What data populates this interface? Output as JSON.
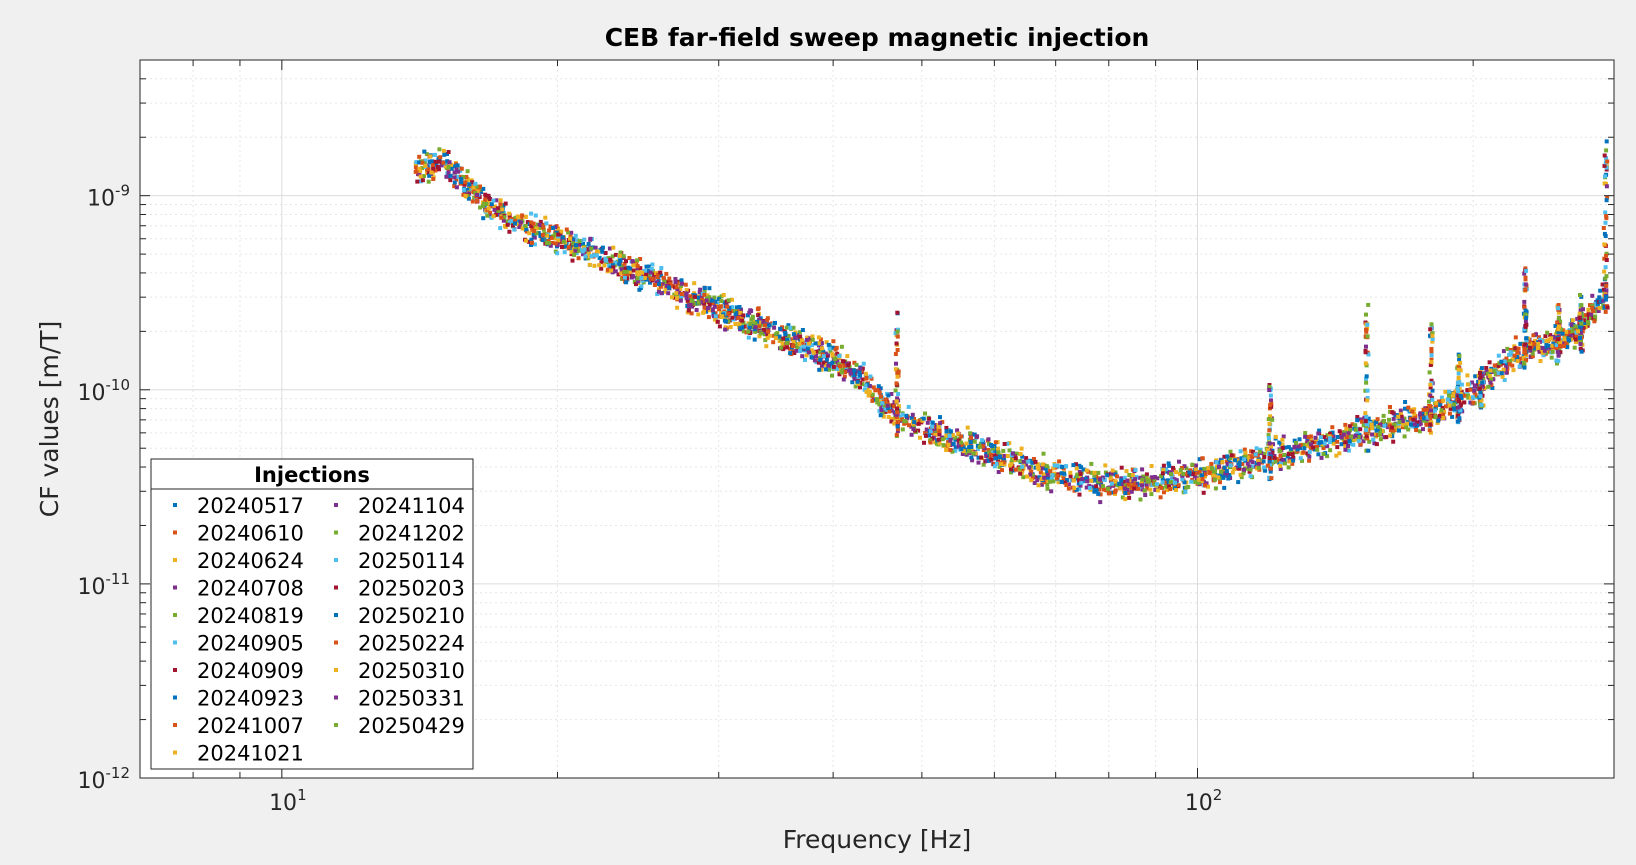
{
  "chart_data": {
    "type": "scatter",
    "title": "CEB far-field sweep magnetic injection",
    "xlabel": "Frequency [Hz]",
    "ylabel": "CF values [m/T]",
    "xscale": "log",
    "yscale": "log",
    "xlim": [
      7,
      285
    ],
    "ylim": [
      1e-12,
      5e-09
    ],
    "grid": true,
    "minor_grid": true,
    "x_ticks": [
      {
        "value": 10,
        "base": "10",
        "exp": "1"
      },
      {
        "value": 100,
        "base": "10",
        "exp": "2"
      }
    ],
    "y_ticks": [
      {
        "value": 1e-09,
        "base": "10",
        "exp": "-9"
      },
      {
        "value": 1e-10,
        "base": "10",
        "exp": "-10"
      },
      {
        "value": 1e-11,
        "base": "10",
        "exp": "-11"
      },
      {
        "value": 1e-12,
        "base": "10",
        "exp": "-12"
      }
    ],
    "legend": {
      "title": "Injections",
      "placement": "bottom-left",
      "columns": 2
    },
    "series": [
      {
        "name": "20240517",
        "color": "#0072BD"
      },
      {
        "name": "20240610",
        "color": "#D95319"
      },
      {
        "name": "20240624",
        "color": "#EDB120"
      },
      {
        "name": "20240708",
        "color": "#7E2F8E"
      },
      {
        "name": "20240819",
        "color": "#77AC30"
      },
      {
        "name": "20240905",
        "color": "#4DBEEE"
      },
      {
        "name": "20240909",
        "color": "#A2142F"
      },
      {
        "name": "20240923",
        "color": "#0072BD"
      },
      {
        "name": "20241007",
        "color": "#D95319"
      },
      {
        "name": "20241021",
        "color": "#EDB120"
      },
      {
        "name": "20241104",
        "color": "#7E2F8E"
      },
      {
        "name": "20241202",
        "color": "#77AC30"
      },
      {
        "name": "20250114",
        "color": "#4DBEEE"
      },
      {
        "name": "20250203",
        "color": "#A2142F"
      },
      {
        "name": "20250210",
        "color": "#0072BD"
      },
      {
        "name": "20250224",
        "color": "#D95319"
      },
      {
        "name": "20250310",
        "color": "#EDB120"
      },
      {
        "name": "20250331",
        "color": "#7E2F8E"
      },
      {
        "name": "20250429",
        "color": "#77AC30"
      }
    ],
    "trend": [
      [
        14,
        1.4e-09
      ],
      [
        15,
        1.45e-09
      ],
      [
        16,
        1.1e-09
      ],
      [
        17,
        8.5e-10
      ],
      [
        18,
        7.2e-10
      ],
      [
        20,
        6e-10
      ],
      [
        22,
        4.9e-10
      ],
      [
        24,
        4.1e-10
      ],
      [
        26,
        3.5e-10
      ],
      [
        28,
        3e-10
      ],
      [
        30,
        2.6e-10
      ],
      [
        33,
        2.1e-10
      ],
      [
        36,
        1.8e-10
      ],
      [
        40,
        1.45e-10
      ],
      [
        43,
        1.15e-10
      ],
      [
        45,
        9e-11
      ],
      [
        47,
        7.5e-11
      ],
      [
        50,
        6.5e-11
      ],
      [
        55,
        5.3e-11
      ],
      [
        60,
        4.6e-11
      ],
      [
        65,
        4e-11
      ],
      [
        70,
        3.6e-11
      ],
      [
        75,
        3.4e-11
      ],
      [
        80,
        3.3e-11
      ],
      [
        90,
        3.4e-11
      ],
      [
        100,
        3.6e-11
      ],
      [
        110,
        4e-11
      ],
      [
        120,
        4.5e-11
      ],
      [
        130,
        5e-11
      ],
      [
        140,
        5.5e-11
      ],
      [
        150,
        6e-11
      ],
      [
        160,
        6.5e-11
      ],
      [
        170,
        7e-11
      ],
      [
        180,
        7.5e-11
      ],
      [
        200,
        1e-10
      ],
      [
        210,
        1.2e-10
      ],
      [
        220,
        1.45e-10
      ],
      [
        230,
        1.65e-10
      ],
      [
        245,
        1.75e-10
      ],
      [
        260,
        2e-10
      ],
      [
        272,
        2.6e-10
      ],
      [
        280,
        3.3e-10
      ]
    ],
    "peaks": [
      {
        "freq": 47,
        "top": 2.8e-10
      },
      {
        "freq": 120,
        "top": 1.1e-10
      },
      {
        "freq": 153,
        "top": 2.8e-10
      },
      {
        "freq": 180,
        "top": 2.2e-10
      },
      {
        "freq": 193,
        "top": 1.6e-10
      },
      {
        "freq": 204,
        "top": 1.3e-10
      },
      {
        "freq": 228,
        "top": 4.3e-10
      },
      {
        "freq": 248,
        "top": 2.8e-10
      },
      {
        "freq": 262,
        "top": 3.1e-10
      },
      {
        "freq": 279,
        "top": 2e-09
      }
    ]
  }
}
